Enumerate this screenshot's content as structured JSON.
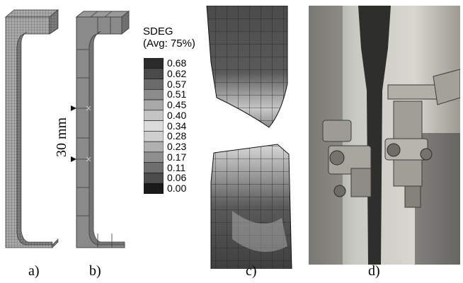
{
  "captions": {
    "a": "a)",
    "b": "b)",
    "c": "c)",
    "d": "d)"
  },
  "dimension_label": "30 mm",
  "legend": {
    "title_line1": "SDEG",
    "title_line2": "(Avg: 75%)",
    "values": [
      "0.68",
      "0.62",
      "0.57",
      "0.51",
      "0.45",
      "0.40",
      "0.34",
      "0.28",
      "0.23",
      "0.17",
      "0.11",
      "0.06",
      "0.00"
    ],
    "colors": [
      "#2b2b2b",
      "#4a4a4a",
      "#6b6b6b",
      "#8c8c8c",
      "#a8a8a8",
      "#c4c4c4",
      "#dcdcdc",
      "#cfcfcf",
      "#b0b0b0",
      "#8f8f8f",
      "#6e6e6e",
      "#4c4c4c",
      "#1a1a1a"
    ]
  }
}
